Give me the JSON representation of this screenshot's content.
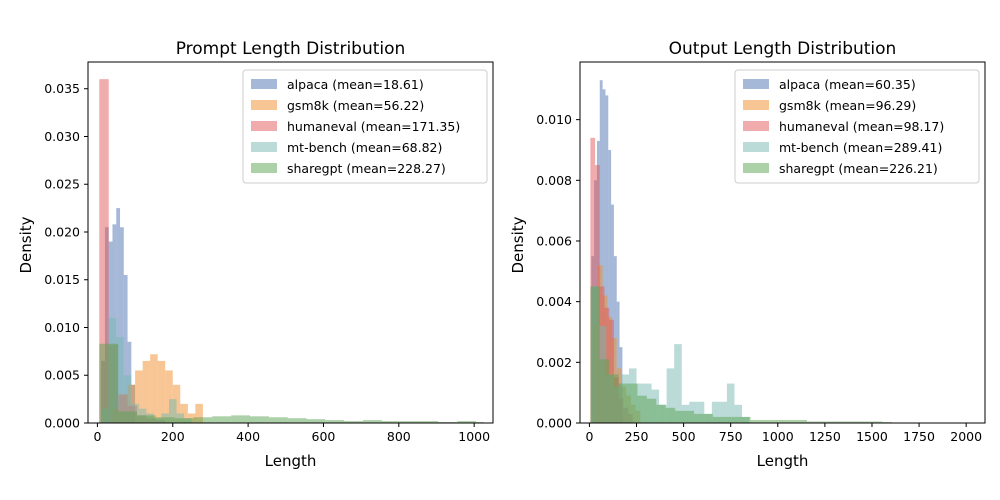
{
  "chart_data": [
    {
      "type": "histogram",
      "title": "Prompt Length Distribution",
      "xlabel": "Length",
      "ylabel": "Density",
      "xlim": [
        -25,
        1050
      ],
      "ylim": [
        0,
        0.0378
      ],
      "xticks": [
        0,
        200,
        400,
        600,
        800,
        1000
      ],
      "xtick_labels": [
        "0",
        "200",
        "400",
        "600",
        "800",
        "1000"
      ],
      "yticks": [
        0,
        0.005,
        0.01,
        0.015,
        0.02,
        0.025,
        0.03,
        0.035
      ],
      "ytick_labels": [
        "0.000",
        "0.005",
        "0.010",
        "0.015",
        "0.020",
        "0.025",
        "0.030",
        "0.035"
      ],
      "grid": false,
      "legend_position": "upper right",
      "series": [
        {
          "name": "alpaca",
          "legend": "alpaca (mean=18.61)",
          "color": "#4c72b0",
          "edges": [
            10,
            20,
            30,
            40,
            50,
            60,
            70,
            80,
            90,
            100
          ],
          "values": [
            0.0065,
            0.0205,
            0.019,
            0.0208,
            0.0225,
            0.0205,
            0.0155,
            0.0085,
            0.004
          ]
        },
        {
          "name": "gsm8k",
          "legend": "gsm8k (mean=56.22)",
          "color": "#f28e2b",
          "edges": [
            40,
            60,
            80,
            100,
            120,
            140,
            160,
            180,
            200,
            220,
            240,
            260,
            280
          ],
          "values": [
            0.0015,
            0.003,
            0.004,
            0.0055,
            0.0065,
            0.0072,
            0.0065,
            0.0055,
            0.004,
            0.002,
            0.001,
            0.002
          ]
        },
        {
          "name": "humaneval",
          "legend": "humaneval (mean=171.35)",
          "color": "#e15759",
          "edges": [
            5,
            30,
            55,
            80,
            105,
            130,
            155,
            180
          ],
          "values": [
            0.036,
            0.0082,
            0.003,
            0.0018,
            0.0008,
            0.0005,
            0.0003
          ]
        },
        {
          "name": "mt-bench",
          "legend": "mt-bench (mean=68.82)",
          "color": "#76b7b2",
          "edges": [
            10,
            30,
            50,
            70,
            90,
            110,
            130,
            150,
            170,
            190,
            210,
            230,
            250
          ],
          "values": [
            0.0015,
            0.011,
            0.009,
            0.005,
            0.002,
            0.0015,
            0.001,
            0.0005,
            0.001,
            0.0025,
            0.001,
            0.0005
          ]
        },
        {
          "name": "sharegpt",
          "legend": "sharegpt (mean=228.27)",
          "color": "#59a14f",
          "edges": [
            5,
            55,
            105,
            155,
            205,
            255,
            305,
            355,
            405,
            455,
            505,
            555,
            605,
            655,
            705,
            755,
            805,
            855,
            905,
            955,
            1005,
            1025
          ],
          "values": [
            0.0083,
            0.0012,
            0.0008,
            0.0006,
            0.0005,
            0.0006,
            0.0007,
            0.0008,
            0.0007,
            0.0006,
            0.0005,
            0.0004,
            0.0003,
            0.0002,
            0.0003,
            0.0002,
            0.0002,
            0.0002,
            0.0001,
            0.0002,
            0.0001
          ]
        }
      ]
    },
    {
      "type": "histogram",
      "title": "Output Length Distribution",
      "xlabel": "Length",
      "ylabel": "Density",
      "xlim": [
        -50,
        2100
      ],
      "ylim": [
        0,
        0.0119
      ],
      "xticks": [
        0,
        250,
        500,
        750,
        1000,
        1250,
        1500,
        1750,
        2000
      ],
      "xtick_labels": [
        "0",
        "250",
        "500",
        "750",
        "1000",
        "1250",
        "1500",
        "1750",
        "2000"
      ],
      "yticks": [
        0,
        0.002,
        0.004,
        0.006,
        0.008,
        0.01
      ],
      "ytick_labels": [
        "0.000",
        "0.002",
        "0.004",
        "0.006",
        "0.008",
        "0.010"
      ],
      "grid": false,
      "legend_position": "upper right",
      "series": [
        {
          "name": "alpaca",
          "legend": "alpaca (mean=60.35)",
          "color": "#4c72b0",
          "edges": [
            10,
            25,
            40,
            55,
            70,
            85,
            100,
            115,
            130,
            145,
            160,
            175
          ],
          "values": [
            0.0055,
            0.008,
            0.0093,
            0.0113,
            0.011,
            0.0108,
            0.009,
            0.0072,
            0.0055,
            0.004,
            0.0025
          ]
        },
        {
          "name": "gsm8k",
          "legend": "gsm8k (mean=96.29)",
          "color": "#f28e2b",
          "edges": [
            20,
            45,
            70,
            95,
            120,
            145,
            170,
            195,
            220,
            245,
            270
          ],
          "values": [
            0.0032,
            0.0052,
            0.0042,
            0.0035,
            0.0028,
            0.0018,
            0.0012,
            0.0009,
            0.0006,
            0.0004
          ]
        },
        {
          "name": "humaneval",
          "legend": "humaneval (mean=98.17)",
          "color": "#e15759",
          "edges": [
            5,
            30,
            55,
            80,
            105,
            130,
            155,
            180,
            205,
            230
          ],
          "values": [
            0.0094,
            0.0085,
            0.0045,
            0.0038,
            0.0034,
            0.0015,
            0.0008,
            0.0005,
            0.0003
          ]
        },
        {
          "name": "mt-bench",
          "legend": "mt-bench (mean=289.41)",
          "color": "#76b7b2",
          "edges": [
            10,
            50,
            90,
            130,
            170,
            210,
            250,
            290,
            330,
            370,
            410,
            450,
            490,
            530,
            570,
            610,
            650,
            690,
            730,
            770,
            810,
            850
          ],
          "values": [
            0.0045,
            0.0032,
            0.0016,
            0.0012,
            0.0016,
            0.0018,
            0.0013,
            0.0013,
            0.0011,
            0.0006,
            0.0018,
            0.0026,
            0.0006,
            0.0007,
            0.0007,
            0.0003,
            0.0007,
            0.0007,
            0.0013,
            0.0006,
            0.0002
          ]
        },
        {
          "name": "sharegpt",
          "legend": "sharegpt (mean=226.21)",
          "color": "#59a14f",
          "edges": [
            5,
            55,
            105,
            155,
            205,
            255,
            305,
            355,
            405,
            455,
            505,
            555,
            605,
            655,
            705,
            755,
            805,
            855,
            905,
            955,
            1005,
            1055,
            1105,
            1155,
            1205,
            1255,
            1305,
            1355,
            1405,
            1455,
            1505,
            1555,
            1605
          ],
          "values": [
            0.0045,
            0.0021,
            0.0016,
            0.0013,
            0.0013,
            0.0009,
            0.0008,
            0.0006,
            0.0005,
            0.0004,
            0.0004,
            0.0003,
            0.0003,
            0.0002,
            0.0002,
            0.0002,
            0.0002,
            0.0001,
            0.0001,
            0.0001,
            0.0001,
            0.0001,
            0.0001,
            5e-05,
            5e-05,
            5e-05,
            5e-05,
            5e-05,
            5e-05,
            5e-05,
            5e-05,
            3e-05
          ]
        }
      ]
    }
  ]
}
